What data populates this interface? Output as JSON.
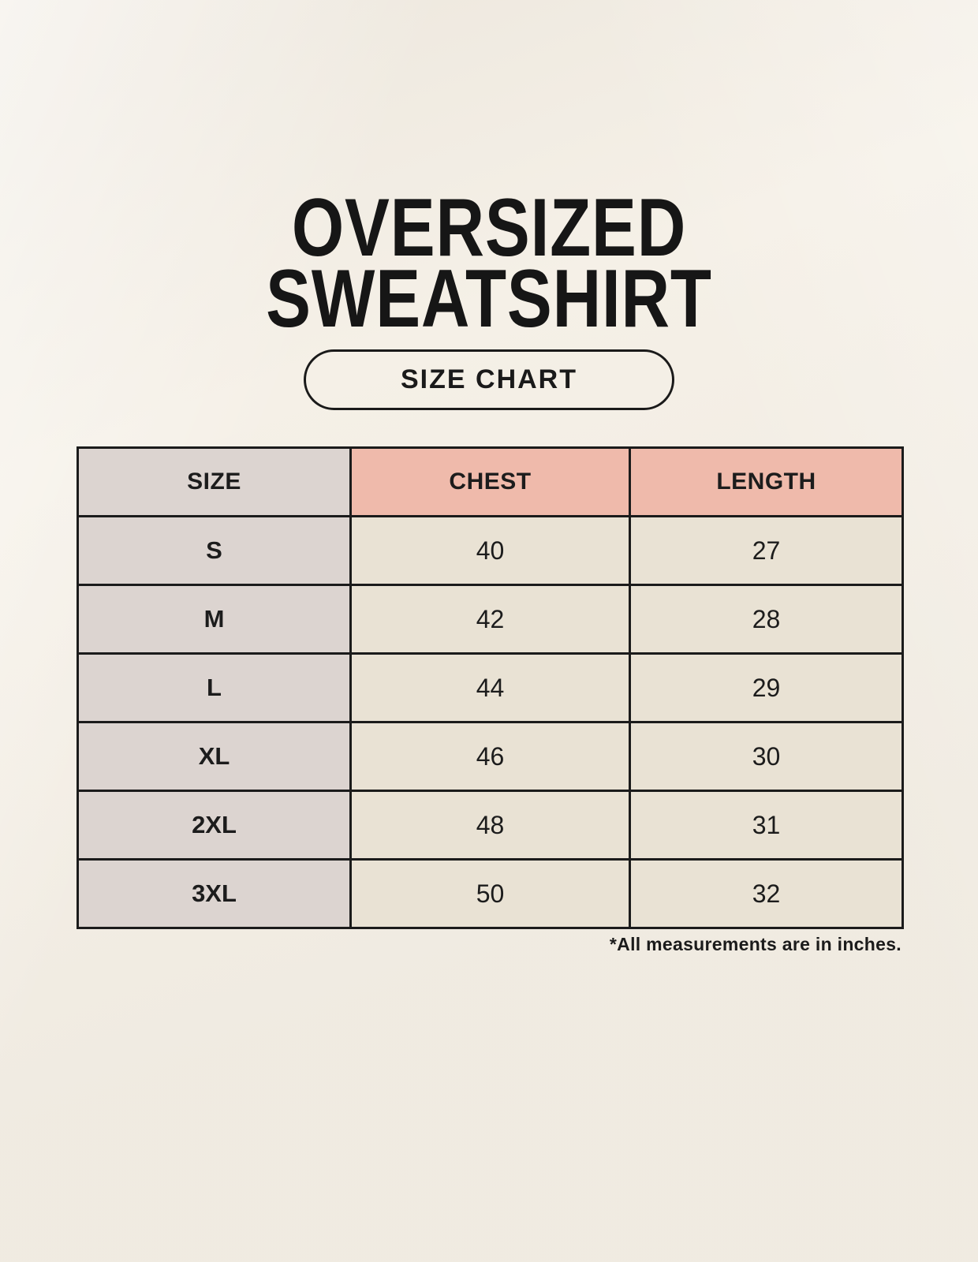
{
  "title": {
    "line1": "OVERSIZED",
    "line2": "SWEATSHIRT"
  },
  "size_chart_button": {
    "label": "SIZE CHART"
  },
  "table": {
    "columns": [
      {
        "label": "SIZE"
      },
      {
        "label": "CHEST"
      },
      {
        "label": "LENGTH"
      }
    ],
    "rows": [
      {
        "size": "S",
        "chest": "40",
        "length": "27"
      },
      {
        "size": "M",
        "chest": "42",
        "length": "28"
      },
      {
        "size": "L",
        "chest": "44",
        "length": "29"
      },
      {
        "size": "XL",
        "chest": "46",
        "length": "30"
      },
      {
        "size": "2XL",
        "chest": "48",
        "length": "31"
      },
      {
        "size": "3XL",
        "chest": "50",
        "length": "32"
      }
    ]
  },
  "footnote": "*All measurements are in inches.",
  "colors": {
    "page_background": "#f5f0e7",
    "size_column_fill": "#dcd4d0",
    "header_fill": "#efbaab",
    "cell_fill": "#e9e2d4",
    "border": "#1b1b1b",
    "text": "#1c1c1c"
  },
  "chart_data": {
    "type": "table",
    "title": "OVERSIZED SWEATSHIRT",
    "subtitle": "SIZE CHART",
    "columns": [
      "SIZE",
      "CHEST",
      "LENGTH"
    ],
    "rows": [
      [
        "S",
        40,
        27
      ],
      [
        "M",
        42,
        28
      ],
      [
        "L",
        44,
        29
      ],
      [
        "XL",
        46,
        30
      ],
      [
        "2XL",
        48,
        31
      ],
      [
        "3XL",
        50,
        32
      ]
    ],
    "units": "inches",
    "note": "*All measurements are in inches."
  }
}
